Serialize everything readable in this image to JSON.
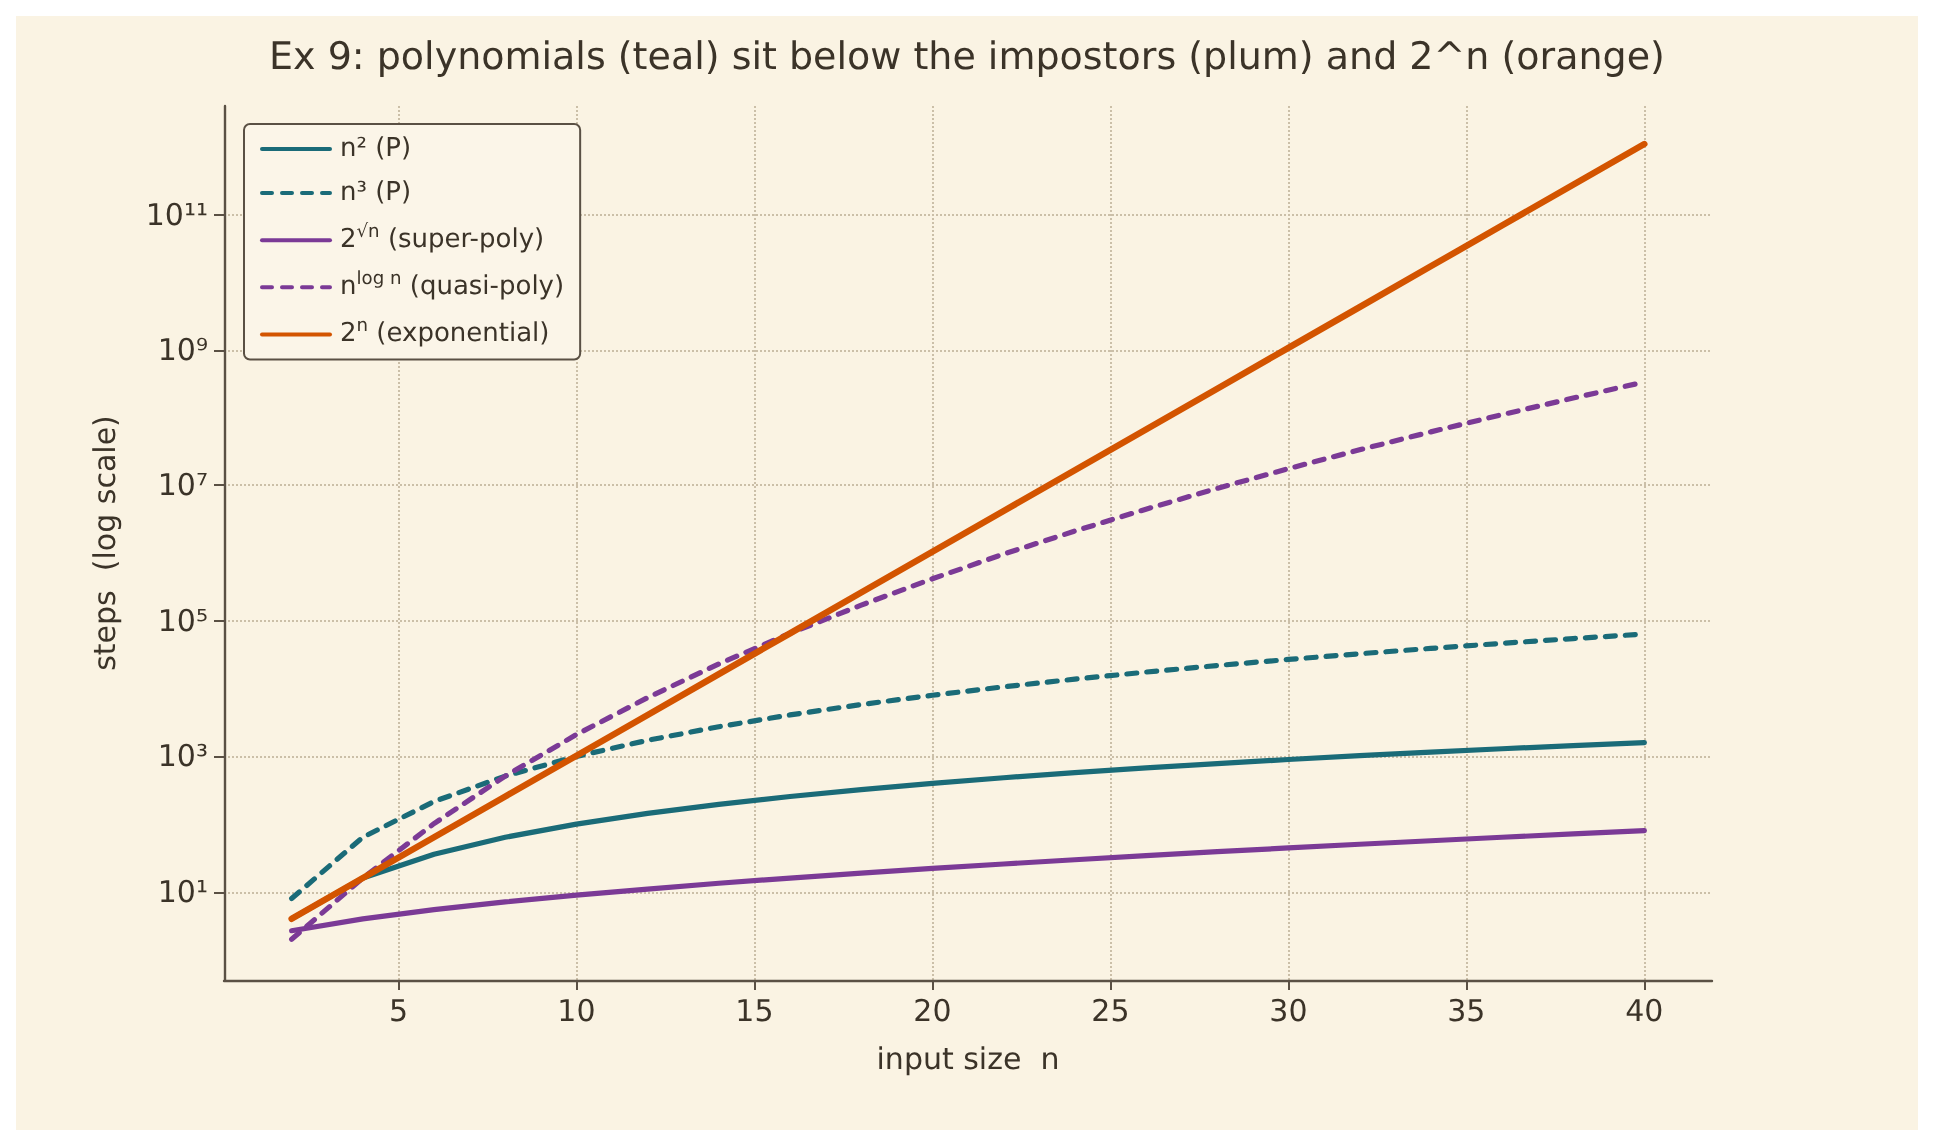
{
  "chart_data": {
    "type": "line",
    "title": "Ex 9: polynomials (teal) sit below the impostors (plum) and 2^n (orange)",
    "xlabel": "input size  n",
    "ylabel": "steps  (log scale)",
    "x": [
      2,
      4,
      6,
      8,
      10,
      12,
      14,
      16,
      18,
      20,
      22,
      24,
      26,
      28,
      30,
      32,
      34,
      36,
      38,
      40
    ],
    "series": [
      {
        "name": "n² (P)",
        "color": "#1a6b78",
        "line_style": "solid",
        "values": [
          4,
          16,
          36,
          64,
          100,
          144,
          196,
          256,
          324,
          400,
          484,
          576,
          676,
          784,
          900,
          1024,
          1156,
          1296,
          1444,
          1600
        ]
      },
      {
        "name": "n³ (P)",
        "color": "#1a6b78",
        "line_style": "dashed",
        "values": [
          8,
          64,
          216,
          512,
          1000,
          1728,
          2744,
          4096,
          5832,
          8000,
          10648,
          13824,
          17576,
          21952,
          27000,
          32768,
          39304,
          46656,
          54872,
          64000
        ]
      },
      {
        "name": "2$^{√n}$ (super-poly)",
        "color": "#7b3a96",
        "line_style": "solid",
        "values": [
          2.67,
          4,
          5.46,
          7.1,
          8.95,
          11,
          13.4,
          16,
          18.9,
          22.2,
          25.8,
          29.8,
          34.3,
          39.2,
          44.5,
          50.5,
          56.9,
          64,
          71.7,
          80.2
        ]
      },
      {
        "name": "n$^{log n}$ (quasi-poly)",
        "color": "#7b3a96",
        "line_style": "dashed",
        "values": [
          2,
          16,
          102,
          512,
          2100,
          7380,
          23200,
          65536,
          171000,
          419000,
          970000,
          2120000,
          4470000,
          9050000,
          17700000,
          33600000,
          61800000,
          111000000,
          195000000,
          337000000
        ]
      },
      {
        "name": "2$^{n}$ (exponential)",
        "color": "#d35400",
        "line_style": "solid",
        "values": [
          4,
          16,
          64,
          256,
          1024,
          4096,
          16384,
          65536,
          262144,
          1048576,
          4194304,
          16777216,
          67108864,
          268435456,
          1073741824,
          4294967296,
          17179869184,
          68719476736,
          274877906944,
          1099511627776
        ]
      }
    ],
    "xlim": [
      0.1,
      41.9
    ],
    "xticks": [
      5,
      10,
      15,
      20,
      25,
      30,
      35,
      40
    ],
    "log": "y",
    "ylim": [
      0.5,
      4000000000000
    ],
    "yticks": [
      {
        "value": 10,
        "label": "10¹"
      },
      {
        "value": 1000,
        "label": "10³"
      },
      {
        "value": 100000,
        "label": "10⁵"
      },
      {
        "value": 10000000,
        "label": "10⁷"
      },
      {
        "value": 1000000000,
        "label": "10⁹"
      },
      {
        "value": 100000000000,
        "label": "10¹¹"
      }
    ],
    "grid": true,
    "legend": "top left",
    "marker": "none"
  }
}
